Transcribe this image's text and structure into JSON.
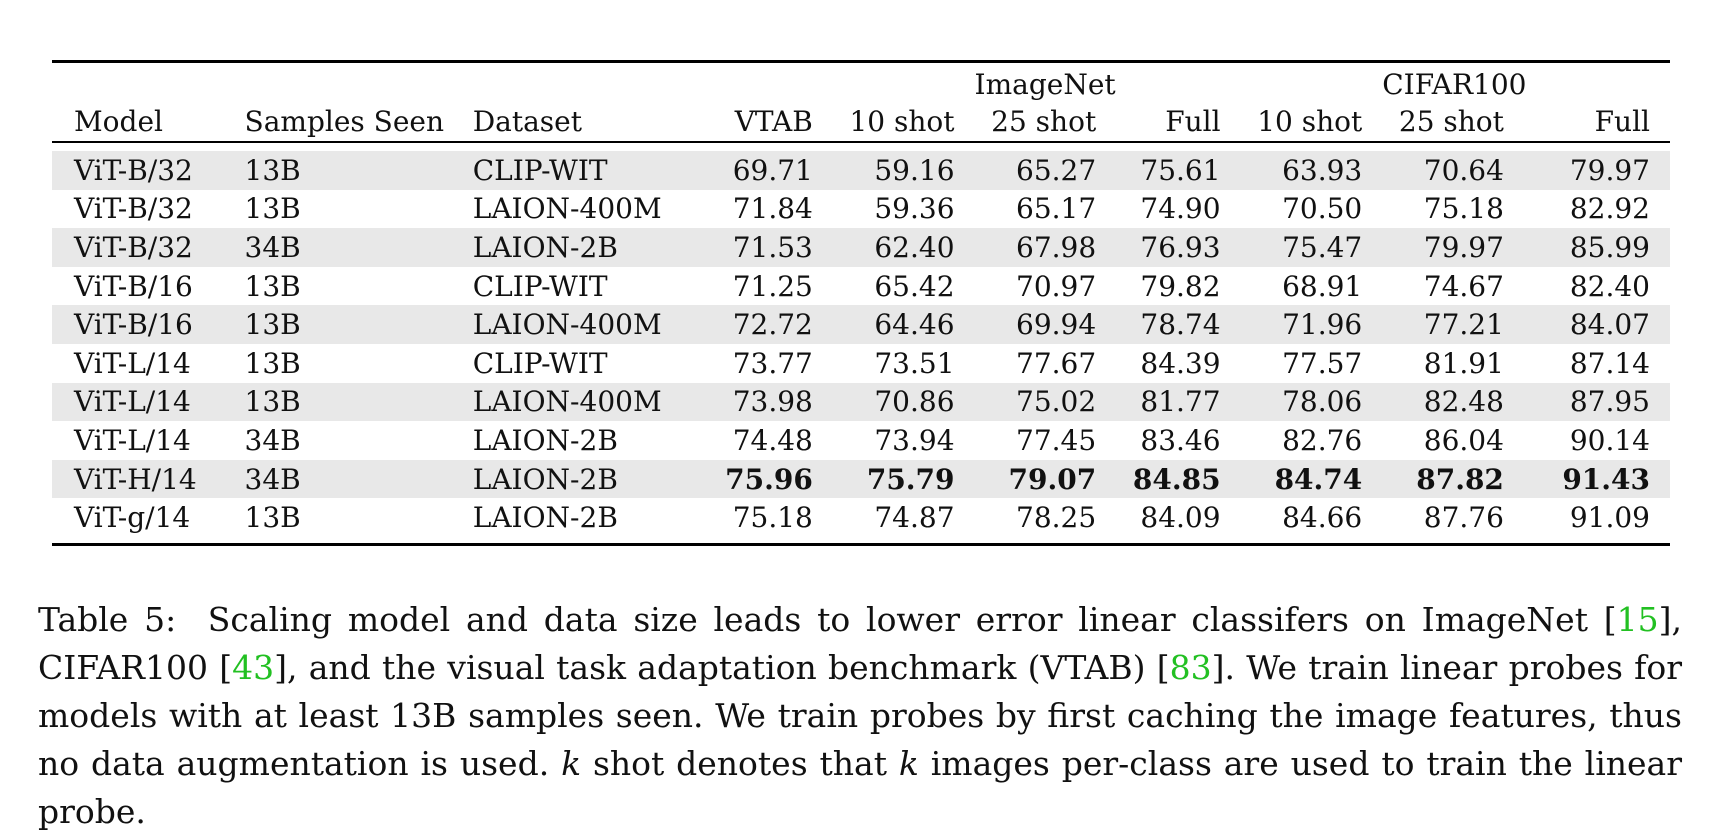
{
  "table": {
    "group_headers": {
      "imagenet": "ImageNet",
      "cifar": "CIFAR100"
    },
    "columns": [
      "Model",
      "Samples Seen",
      "Dataset",
      "VTAB",
      "10 shot",
      "25 shot",
      "Full",
      "10 shot",
      "25 shot",
      "Full"
    ],
    "rows": [
      [
        "ViT-B/32",
        "13B",
        "CLIP-WIT",
        "69.71",
        "59.16",
        "65.27",
        "75.61",
        "63.93",
        "70.64",
        "79.97"
      ],
      [
        "ViT-B/32",
        "13B",
        "LAION-400M",
        "71.84",
        "59.36",
        "65.17",
        "74.90",
        "70.50",
        "75.18",
        "82.92"
      ],
      [
        "ViT-B/32",
        "34B",
        "LAION-2B",
        "71.53",
        "62.40",
        "67.98",
        "76.93",
        "75.47",
        "79.97",
        "85.99"
      ],
      [
        "ViT-B/16",
        "13B",
        "CLIP-WIT",
        "71.25",
        "65.42",
        "70.97",
        "79.82",
        "68.91",
        "74.67",
        "82.40"
      ],
      [
        "ViT-B/16",
        "13B",
        "LAION-400M",
        "72.72",
        "64.46",
        "69.94",
        "78.74",
        "71.96",
        "77.21",
        "84.07"
      ],
      [
        "ViT-L/14",
        "13B",
        "CLIP-WIT",
        "73.77",
        "73.51",
        "77.67",
        "84.39",
        "77.57",
        "81.91",
        "87.14"
      ],
      [
        "ViT-L/14",
        "13B",
        "LAION-400M",
        "73.98",
        "70.86",
        "75.02",
        "81.77",
        "78.06",
        "82.48",
        "87.95"
      ],
      [
        "ViT-L/14",
        "34B",
        "LAION-2B",
        "74.48",
        "73.94",
        "77.45",
        "83.46",
        "82.76",
        "86.04",
        "90.14"
      ],
      [
        "ViT-H/14",
        "34B",
        "LAION-2B",
        "75.96",
        "75.79",
        "79.07",
        "84.85",
        "84.74",
        "87.82",
        "91.43"
      ],
      [
        "ViT-g/14",
        "13B",
        "LAION-2B",
        "75.18",
        "74.87",
        "78.25",
        "84.09",
        "84.66",
        "87.76",
        "91.09"
      ]
    ],
    "bold_row_index": 8,
    "shaded_row_indices": [
      0,
      2,
      4,
      6,
      8
    ]
  },
  "caption": {
    "label": "Table 5:",
    "text_1": "Scaling model and data size leads to lower error linear classifers on ImageNet [",
    "ref_1": "15",
    "text_2": "], CIFAR100 [",
    "ref_2": "43",
    "text_3": "], and the visual task adaptation benchmark (VTAB) [",
    "ref_3": "83",
    "text_4": "]. We train linear probes for models with at least 13B samples seen. We train probes by first caching the image features, thus no data augmentation is used. ",
    "k_1": "k",
    "text_5": " shot denotes that ",
    "k_2": "k",
    "text_6": " images per-class are used to train the linear probe.",
    "ref_color": "#22c022"
  }
}
